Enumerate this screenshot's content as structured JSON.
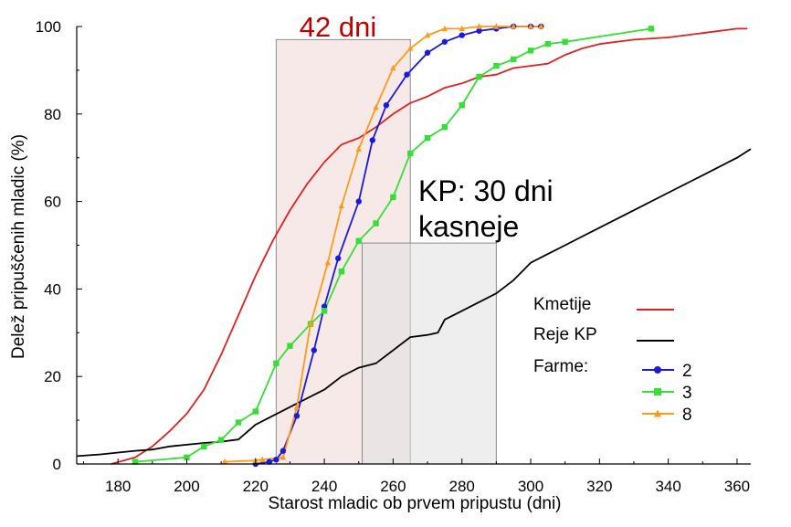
{
  "chart_data": {
    "type": "line",
    "xlabel": "Starost mladic ob prvem pripustu (dni)",
    "ylabel": "Delež pripuščenih mladic (%)",
    "xlim": [
      168,
      364
    ],
    "ylim": [
      0,
      100
    ],
    "xticks": [
      180,
      200,
      220,
      240,
      260,
      280,
      300,
      320,
      340,
      360
    ],
    "yticks": [
      0,
      20,
      40,
      60,
      80,
      100
    ],
    "grid": false,
    "annotations": [
      {
        "text": "42 dni",
        "color": "#c00000"
      },
      {
        "text": "KP: 30 dni"
      },
      {
        "text": "kasneje"
      }
    ],
    "shaded_regions": [
      {
        "x": [
          226,
          265
        ],
        "y": [
          0,
          97
        ],
        "color": "#f5e1e1"
      },
      {
        "x": [
          251,
          290
        ],
        "y": [
          0,
          50.5
        ],
        "color": "#e0e0e0"
      }
    ],
    "legend": {
      "placement": "lower-right",
      "lines": [
        {
          "label": "Kmetije",
          "color": "#e32020"
        },
        {
          "label": "Reje KP",
          "color": "#000000"
        }
      ],
      "group_title": "Farme:",
      "markers": [
        {
          "label": "2",
          "color": "#1a1adc",
          "marker": "circle"
        },
        {
          "label": "3",
          "color": "#33e033",
          "marker": "square"
        },
        {
          "label": "8",
          "color": "#ff9a1a",
          "marker": "triangle"
        }
      ]
    },
    "series": [
      {
        "name": "Kmetije",
        "color": "#e32020",
        "marker": "none",
        "x": [
          178,
          185,
          190,
          195,
          200,
          205,
          210,
          215,
          220,
          225,
          230,
          235,
          240,
          245,
          250,
          255,
          260,
          265,
          270,
          275,
          280,
          285,
          290,
          295,
          300,
          305,
          310,
          315,
          320,
          330,
          340,
          350,
          360,
          363
        ],
        "y": [
          0,
          1.5,
          4,
          7.5,
          11.5,
          17,
          25,
          34,
          43,
          51,
          58,
          64,
          69,
          73,
          74.5,
          77,
          80,
          82.5,
          84,
          86,
          87,
          88.5,
          89,
          90.5,
          91,
          91.5,
          93.5,
          95,
          96,
          97,
          97.5,
          98.5,
          99.5,
          99.5
        ]
      },
      {
        "name": "Reje KP",
        "color": "#000000",
        "marker": "none",
        "x": [
          168,
          175,
          180,
          185,
          190,
          195,
          200,
          205,
          210,
          215,
          220,
          225,
          230,
          235,
          240,
          245,
          250,
          255,
          260,
          265,
          270,
          273,
          275,
          280,
          285,
          290,
          295,
          300,
          305,
          310,
          320,
          330,
          340,
          350,
          360,
          364
        ],
        "y": [
          1.8,
          2.2,
          2.6,
          3,
          3.3,
          4,
          4.4,
          4.8,
          5.1,
          5.6,
          9,
          11,
          13,
          15,
          17,
          20,
          22,
          23,
          26,
          29,
          29.5,
          30,
          33,
          35,
          37,
          39,
          42,
          46,
          48,
          50,
          54,
          58,
          62,
          66,
          70,
          72
        ]
      },
      {
        "name": "2",
        "color": "#1a1adc",
        "marker": "circle",
        "x": [
          220,
          224,
          226,
          228,
          232,
          237,
          240,
          244,
          250,
          254,
          258,
          264,
          270,
          275,
          280,
          285,
          290,
          295,
          300,
          303
        ],
        "y": [
          0,
          0.5,
          1,
          3,
          11,
          26,
          36,
          47,
          60,
          74,
          82,
          89,
          94,
          96.5,
          98,
          99,
          99.5,
          100,
          100,
          100
        ]
      },
      {
        "name": "3",
        "color": "#33e033",
        "marker": "square",
        "x": [
          185,
          200,
          205,
          210,
          215,
          220,
          226,
          230,
          236,
          240,
          245,
          250,
          255,
          260,
          265,
          270,
          275,
          280,
          285,
          290,
          295,
          300,
          305,
          310,
          335
        ],
        "y": [
          0.5,
          1.5,
          4,
          5.5,
          9.5,
          12,
          23,
          27,
          32,
          35,
          44,
          51,
          55,
          61,
          71,
          74.5,
          77,
          82,
          88.5,
          91,
          92.5,
          94.5,
          96,
          96.5,
          99.5
        ]
      },
      {
        "name": "8",
        "color": "#ff9a1a",
        "marker": "triangle",
        "x": [
          211,
          220,
          222,
          228,
          232,
          236,
          241,
          245,
          250,
          255,
          260,
          265,
          270,
          275,
          280,
          285,
          290,
          295,
          300,
          303
        ],
        "y": [
          0.5,
          0.8,
          1,
          1.5,
          13,
          32,
          46,
          59,
          72,
          81.5,
          90.5,
          95,
          98,
          99.5,
          99.5,
          100,
          100,
          100,
          100,
          100
        ]
      }
    ]
  }
}
